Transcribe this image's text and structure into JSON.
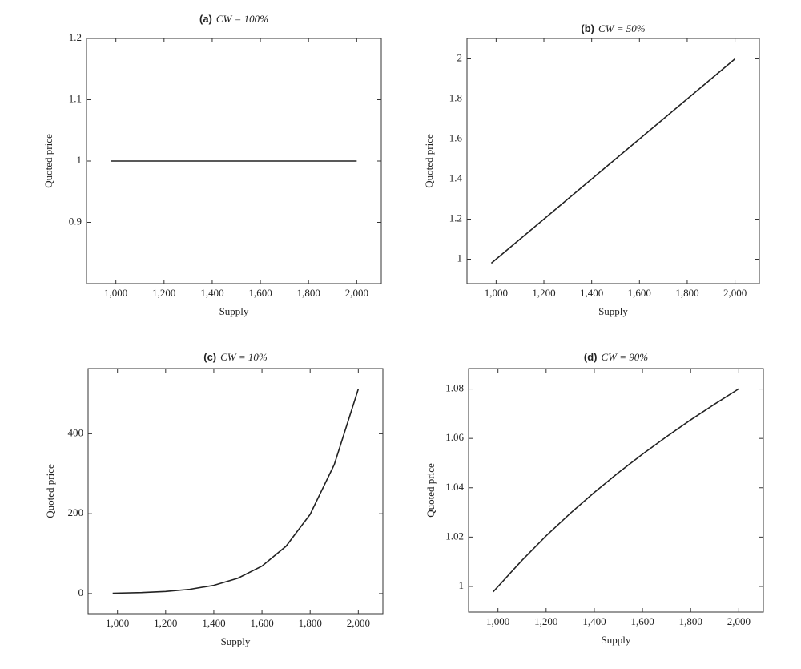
{
  "chart_data": [
    {
      "type": "line",
      "panel": "(a)",
      "title": "CW = 100%",
      "xlabel": "Supply",
      "ylabel": "Quoted price",
      "color": "#222222",
      "x": [
        980,
        1100,
        1200,
        1300,
        1400,
        1500,
        1600,
        1700,
        1800,
        1900,
        2000
      ],
      "values": [
        1,
        1,
        1,
        1,
        1,
        1,
        1,
        1,
        1,
        1,
        1
      ],
      "xlim": [
        878,
        2102
      ],
      "ylim": [
        0.8,
        1.2
      ],
      "xticks": [
        {
          "value": 1000,
          "label": "1,000"
        },
        {
          "value": 1200,
          "label": "1,200"
        },
        {
          "value": 1400,
          "label": "1,400"
        },
        {
          "value": 1600,
          "label": "1,600"
        },
        {
          "value": 1800,
          "label": "1,800"
        },
        {
          "value": 2000,
          "label": "2,000"
        }
      ],
      "yticks": [
        0.9,
        1,
        1.1,
        1.2
      ]
    },
    {
      "type": "line",
      "panel": "(b)",
      "title": "CW = 50%",
      "xlabel": "Supply",
      "ylabel": "Quoted price",
      "color": "#222222",
      "x": [
        980,
        1100,
        1200,
        1300,
        1400,
        1500,
        1600,
        1700,
        1800,
        1900,
        2000
      ],
      "values": [
        0.98,
        1.1,
        1.2,
        1.3,
        1.4,
        1.5,
        1.6,
        1.7,
        1.8,
        1.9,
        2
      ],
      "xlim": [
        878,
        2102
      ],
      "ylim": [
        0.878,
        2.102
      ],
      "xticks": [
        {
          "value": 1000,
          "label": "1,000"
        },
        {
          "value": 1200,
          "label": "1,200"
        },
        {
          "value": 1400,
          "label": "1,400"
        },
        {
          "value": 1600,
          "label": "1,600"
        },
        {
          "value": 1800,
          "label": "1,800"
        },
        {
          "value": 2000,
          "label": "2,000"
        }
      ],
      "yticks": [
        1,
        1.2,
        1.4,
        1.6,
        1.8,
        2
      ]
    },
    {
      "type": "line",
      "panel": "(c)",
      "title": "CW = 10%",
      "xlabel": "Supply",
      "ylabel": "Quoted price",
      "color": "#222222",
      "x": [
        980,
        1100,
        1200,
        1300,
        1400,
        1500,
        1600,
        1700,
        1800,
        1900,
        2000
      ],
      "values": [
        0.83,
        2.36,
        5.16,
        10.6,
        20.66,
        38.44,
        68.72,
        118.6,
        198.4,
        322.7,
        512
      ],
      "xlim": [
        878,
        2102
      ],
      "ylim": [
        -50.3,
        563.2
      ],
      "xticks": [
        {
          "value": 1000,
          "label": "1,000"
        },
        {
          "value": 1200,
          "label": "1,200"
        },
        {
          "value": 1400,
          "label": "1,400"
        },
        {
          "value": 1600,
          "label": "1,600"
        },
        {
          "value": 1800,
          "label": "1,800"
        },
        {
          "value": 2000,
          "label": "2,000"
        }
      ],
      "yticks": [
        0,
        200,
        400
      ]
    },
    {
      "type": "line",
      "panel": "(d)",
      "title": "CW = 90%",
      "xlabel": "Supply",
      "ylabel": "Quoted price",
      "color": "#222222",
      "x": [
        980,
        1100,
        1200,
        1300,
        1400,
        1500,
        1600,
        1700,
        1800,
        1900,
        2000
      ],
      "values": [
        0.9978,
        1.0106,
        1.0205,
        1.0296,
        1.0381,
        1.0461,
        1.0536,
        1.0607,
        1.0675,
        1.0739,
        1.0801
      ],
      "xlim": [
        878,
        2102
      ],
      "ylim": [
        0.9896,
        1.0883
      ],
      "xticks": [
        {
          "value": 1000,
          "label": "1,000"
        },
        {
          "value": 1200,
          "label": "1,200"
        },
        {
          "value": 1400,
          "label": "1,400"
        },
        {
          "value": 1600,
          "label": "1,600"
        },
        {
          "value": 1800,
          "label": "1,800"
        },
        {
          "value": 2000,
          "label": "2,000"
        }
      ],
      "yticks": [
        1,
        1.02,
        1.04,
        1.06,
        1.08
      ]
    }
  ]
}
